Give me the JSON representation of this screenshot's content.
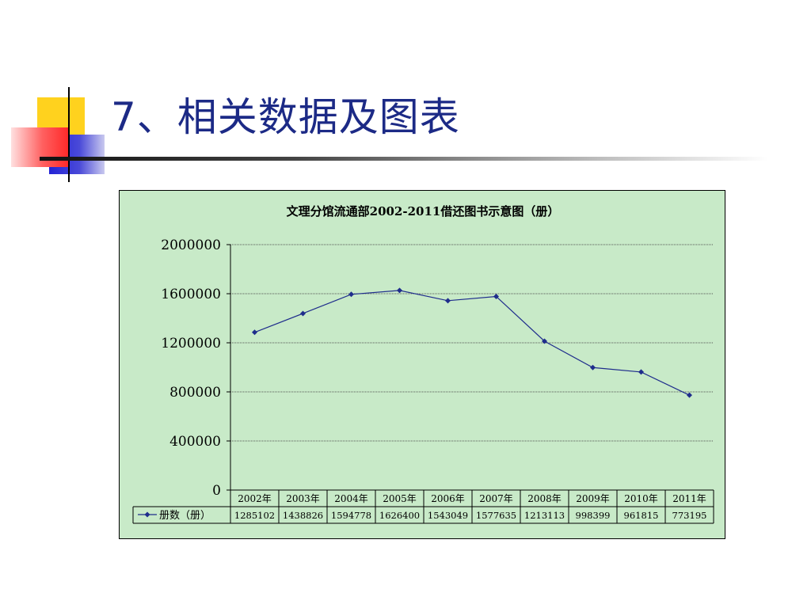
{
  "slide": {
    "title": "7、相关数据及图表"
  },
  "chart_data": {
    "type": "line",
    "title": "文理分馆流通部2002-2011借还图书示意图（册）",
    "categories": [
      "2002年",
      "2003年",
      "2004年",
      "2005年",
      "2006年",
      "2007年",
      "2008年",
      "2009年",
      "2010年",
      "2011年"
    ],
    "series": [
      {
        "name": "册数（册）",
        "values": [
          1285102,
          1438826,
          1594778,
          1626400,
          1543049,
          1577635,
          1213113,
          998399,
          961815,
          773195
        ]
      }
    ],
    "ylim": [
      0,
      2000000
    ],
    "yticks": [
      0,
      400000,
      800000,
      1200000,
      1600000,
      2000000
    ],
    "grid": true,
    "data_table": true,
    "colors": {
      "line": "#1f2d8c",
      "background": "#c8eac8",
      "grid": "#555555"
    }
  }
}
